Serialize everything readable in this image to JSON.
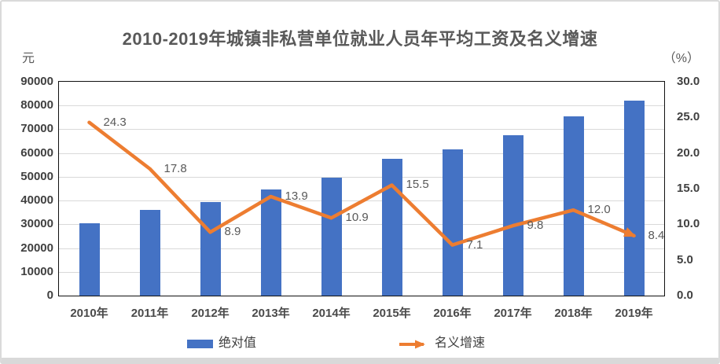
{
  "title": "2010-2019年城镇非私营单位就业人员年平均工资及名义增速",
  "axes": {
    "left_unit": "元",
    "right_unit": "（%）",
    "left_ticks": [
      "0",
      "10000",
      "20000",
      "30000",
      "40000",
      "50000",
      "60000",
      "70000",
      "80000",
      "90000"
    ],
    "right_ticks": [
      "0.0",
      "5.0",
      "10.0",
      "15.0",
      "20.0",
      "25.0",
      "30.0"
    ]
  },
  "legend": {
    "bar_label": "绝对值",
    "line_label": "名义增速"
  },
  "colors": {
    "bar": "#4472C4",
    "line": "#ED7D31",
    "grid": "#D9D9D9",
    "plot_border": "#111111",
    "title_text": "#595959",
    "tick_text": "#404040",
    "data_label_text": "#595959"
  },
  "chart_data": {
    "type": "bar",
    "combo": "bar-line",
    "title": "2010-2019年城镇非私营单位就业人员年平均工资及名义增速",
    "categories": [
      "2010年",
      "2011年",
      "2012年",
      "2013年",
      "2014年",
      "2015年",
      "2016年",
      "2017年",
      "2018年",
      "2019年"
    ],
    "series": [
      {
        "name": "绝对值",
        "type": "bar",
        "axis": "left",
        "values": [
          30500,
          36100,
          39300,
          44700,
          49700,
          57500,
          61600,
          67600,
          75600,
          82000
        ]
      },
      {
        "name": "名义增速",
        "type": "line",
        "axis": "right",
        "values": [
          24.3,
          17.8,
          8.9,
          13.9,
          10.9,
          15.5,
          7.1,
          9.8,
          12.0,
          8.4
        ],
        "point_labels": [
          "24.3",
          "17.8",
          "8.9",
          "13.9",
          "10.9",
          "15.5",
          "7.1",
          "9.8",
          "12.0",
          "8.4"
        ]
      }
    ],
    "left_axis": {
      "label": "元",
      "min": 0,
      "max": 90000,
      "step": 10000
    },
    "right_axis": {
      "label": "（%）",
      "min": 0,
      "max": 30,
      "step": 5
    },
    "grid": true,
    "legend_position": "bottom"
  }
}
